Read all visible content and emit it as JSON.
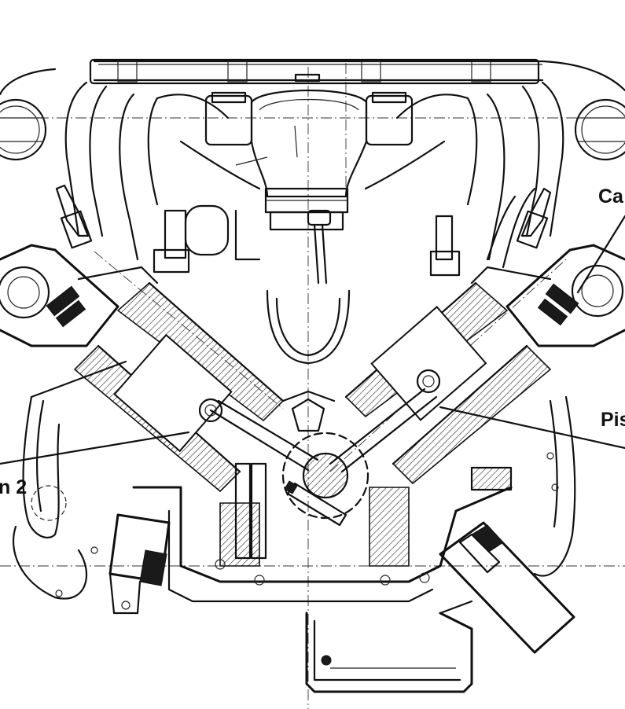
{
  "labels": {
    "camshaft": "Ca",
    "piston": "Pis",
    "piston2": "n 2"
  }
}
